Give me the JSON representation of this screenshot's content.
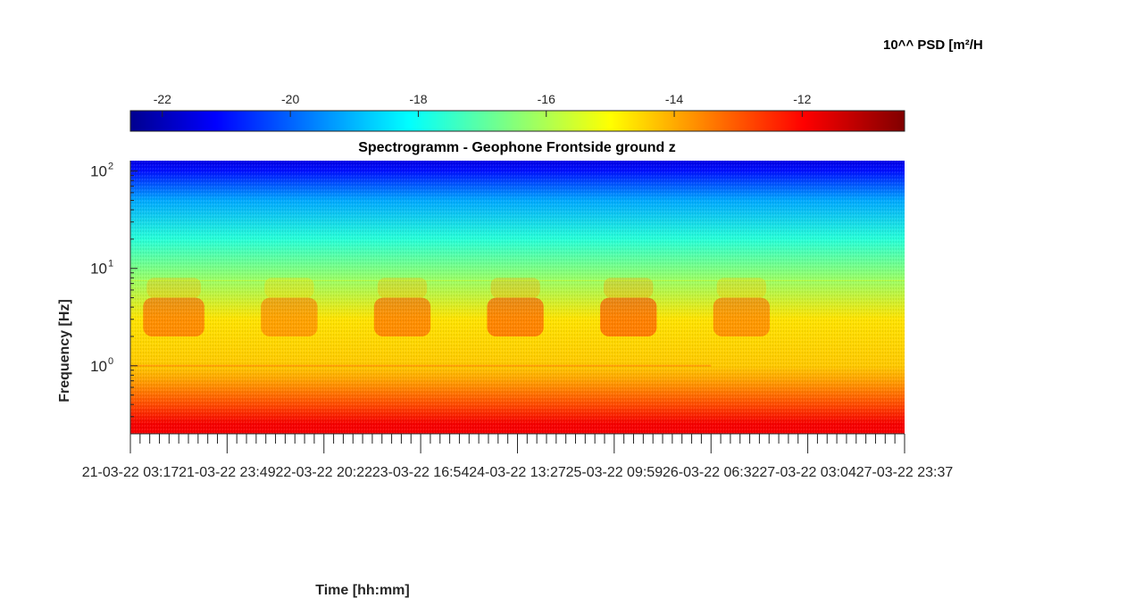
{
  "chart_data": {
    "type": "heatmap",
    "title": "Spectrogramm - Geophone Frontside ground z",
    "xlabel": "Time [hh:mm]",
    "ylabel": "Frequency [Hz]",
    "y_scale": "log",
    "ylim": [
      0.2,
      128
    ],
    "y_ticks": [
      {
        "value": 1,
        "base": "10",
        "exp": "0"
      },
      {
        "value": 10,
        "base": "10",
        "exp": "1"
      },
      {
        "value": 100,
        "base": "10",
        "exp": "2"
      }
    ],
    "xlim": [
      "21-03-22 03:17",
      "27-03-22 23:37"
    ],
    "x_ticks": [
      "21-03-22 03:17",
      "21-03-22 23:49",
      "22-03-22 20:22",
      "23-03-22 16:54",
      "24-03-22 13:27",
      "25-03-22 09:59",
      "26-03-22 06:32",
      "27-03-22 03:04",
      "27-03-22 23:37"
    ],
    "colorbar": {
      "label": "10^^ PSD [m²/H",
      "location": "top",
      "colormap": "jet",
      "range": [
        -22.5,
        -10.4
      ],
      "ticks": [
        -22,
        -20,
        -18,
        -16,
        -14,
        -12
      ]
    },
    "grid": false,
    "psd_profile_by_frequency": [
      {
        "frequency_hz": 0.25,
        "log10_psd": -11.8
      },
      {
        "frequency_hz": 0.4,
        "log10_psd": -12.8
      },
      {
        "frequency_hz": 0.7,
        "log10_psd": -13.8
      },
      {
        "frequency_hz": 1.0,
        "log10_psd": -14.3
      },
      {
        "frequency_hz": 3.0,
        "log10_psd": -14.6
      },
      {
        "frequency_hz": 8.0,
        "log10_psd": -16.2
      },
      {
        "frequency_hz": 20.0,
        "log10_psd": -17.5
      },
      {
        "frequency_hz": 50.0,
        "log10_psd": -19.0
      },
      {
        "frequency_hz": 100.0,
        "log10_psd": -20.8
      },
      {
        "frequency_hz": 128.0,
        "log10_psd": -21.3
      }
    ],
    "activity_bursts_2_5hz": [
      {
        "start": "21-03-22 06:00",
        "end": "21-03-22 19:00",
        "log10_psd": -12.8
      },
      {
        "start": "22-03-22 07:00",
        "end": "22-03-22 19:00",
        "log10_psd": -13.2
      },
      {
        "start": "23-03-22 07:00",
        "end": "23-03-22 19:00",
        "log10_psd": -12.8
      },
      {
        "start": "24-03-22 07:00",
        "end": "24-03-22 19:00",
        "log10_psd": -12.6
      },
      {
        "start": "25-03-22 07:00",
        "end": "25-03-22 19:00",
        "log10_psd": -12.5
      },
      {
        "start": "26-03-22 07:00",
        "end": "26-03-22 19:00",
        "log10_psd": -13.0
      }
    ]
  }
}
